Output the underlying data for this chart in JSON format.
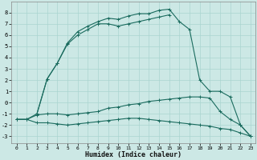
{
  "xlabel": "Humidex (Indice chaleur)",
  "bg_color": "#cce8e5",
  "grid_color": "#aad4d0",
  "line_color": "#1a6b5e",
  "xlim": [
    -0.5,
    23.5
  ],
  "ylim": [
    -3.6,
    9.0
  ],
  "yticks": [
    -3,
    -2,
    -1,
    0,
    1,
    2,
    3,
    4,
    5,
    6,
    7,
    8
  ],
  "xticks": [
    0,
    1,
    2,
    3,
    4,
    5,
    6,
    7,
    8,
    9,
    10,
    11,
    12,
    13,
    14,
    15,
    16,
    17,
    18,
    19,
    20,
    21,
    22,
    23
  ],
  "curves": [
    {
      "x": [
        0,
        1,
        2,
        3,
        4,
        5,
        6,
        7,
        8,
        9,
        10,
        11,
        12,
        13,
        14,
        15,
        16,
        17,
        18,
        19,
        20,
        21,
        22,
        23
      ],
      "y": [
        -1.5,
        -1.5,
        -1.0,
        2.1,
        3.5,
        5.3,
        6.3,
        6.8,
        7.2,
        7.5,
        7.4,
        7.7,
        7.9,
        7.9,
        8.2,
        8.3,
        7.2,
        6.5,
        2.0,
        1.0,
        1.0,
        0.5,
        -2.0,
        -3.0
      ],
      "marker": "+"
    },
    {
      "x": [
        2,
        3,
        4,
        5,
        6,
        7,
        8,
        9,
        10,
        11,
        12,
        13,
        14,
        15
      ],
      "y": [
        -1.0,
        2.1,
        3.5,
        5.2,
        6.0,
        6.5,
        7.0,
        7.0,
        6.8,
        7.0,
        7.2,
        7.4,
        7.6,
        7.8
      ],
      "marker": "+"
    },
    {
      "x": [
        0,
        1,
        2,
        3,
        4,
        5,
        6,
        7,
        8,
        9,
        10,
        11,
        12,
        13,
        14,
        15,
        16,
        17,
        18,
        19,
        20,
        21,
        22,
        23
      ],
      "y": [
        -1.5,
        -1.5,
        -1.1,
        -1.0,
        -1.0,
        -1.1,
        -1.0,
        -0.9,
        -0.8,
        -0.5,
        -0.4,
        -0.2,
        -0.1,
        0.1,
        0.2,
        0.3,
        0.4,
        0.5,
        0.5,
        0.4,
        -0.8,
        -1.5,
        -2.0,
        -3.0
      ],
      "marker": "+"
    },
    {
      "x": [
        0,
        1,
        2,
        3,
        4,
        5,
        6,
        7,
        8,
        9,
        10,
        11,
        12,
        13,
        14,
        15,
        16,
        17,
        18,
        19,
        20,
        21,
        22,
        23
      ],
      "y": [
        -1.5,
        -1.5,
        -1.8,
        -1.8,
        -1.9,
        -2.0,
        -1.9,
        -1.8,
        -1.7,
        -1.6,
        -1.5,
        -1.4,
        -1.4,
        -1.5,
        -1.6,
        -1.7,
        -1.8,
        -1.9,
        -2.0,
        -2.1,
        -2.3,
        -2.4,
        -2.7,
        -3.0
      ],
      "marker": "+"
    }
  ]
}
